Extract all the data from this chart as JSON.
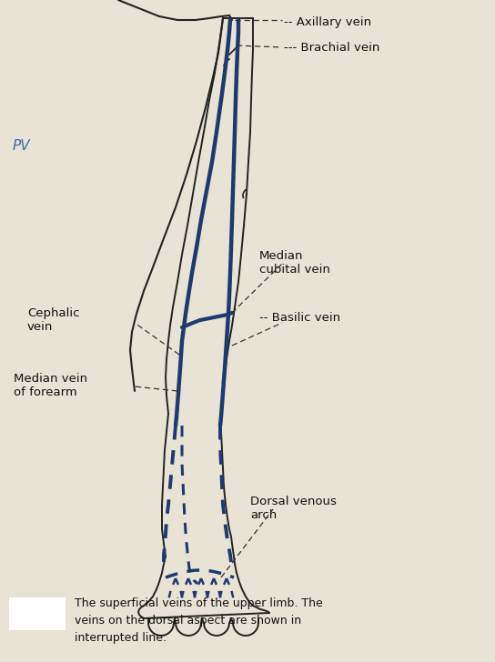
{
  "bg_color": "#e8e3d5",
  "vein_color": "#1e3a6e",
  "outline_color": "#222222",
  "label_color": "#111111",
  "caption": "The superficial veins of the upper limb. The\nveins on the dorsal aspect are shown in\ninterrupted line.",
  "labels": {
    "axillary": "-- Axillary vein",
    "brachial": "--- Brachial vein",
    "median_cubital": "Median\ncubital vein",
    "basilic": "-- Basilic vein",
    "cephalic": "Cephalic\nvein",
    "median_forearm": "Median vein\nof forearm",
    "dorsal": "Dorsal venous\narch"
  }
}
